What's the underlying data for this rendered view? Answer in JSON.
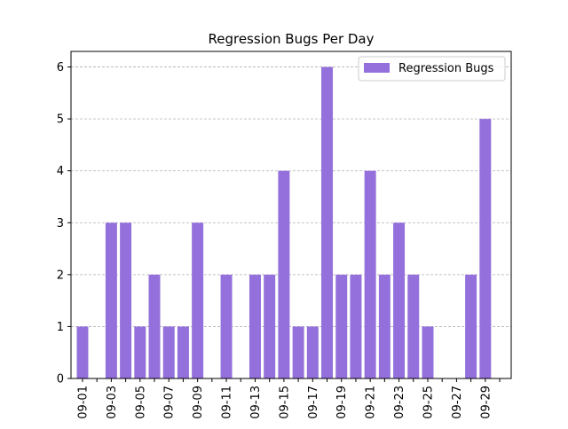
{
  "chart_data": {
    "type": "bar",
    "title": "Regression Bugs Per Day",
    "xlabel": "",
    "ylabel": "",
    "categories": [
      "09-01",
      "09-02",
      "09-03",
      "09-04",
      "09-05",
      "09-06",
      "09-07",
      "09-08",
      "09-09",
      "09-10",
      "09-11",
      "09-12",
      "09-13",
      "09-14",
      "09-15",
      "09-16",
      "09-17",
      "09-18",
      "09-19",
      "09-20",
      "09-21",
      "09-22",
      "09-23",
      "09-24",
      "09-25",
      "09-26",
      "09-27",
      "09-28",
      "09-29",
      "09-30"
    ],
    "x_tick_labels": [
      "09-01",
      "09-03",
      "09-05",
      "09-07",
      "09-09",
      "09-11",
      "09-13",
      "09-15",
      "09-17",
      "09-19",
      "09-21",
      "09-23",
      "09-25",
      "09-27",
      "09-29"
    ],
    "series": [
      {
        "name": "Regression Bugs",
        "color": "#9370DB",
        "values": [
          1,
          0,
          3,
          3,
          1,
          2,
          1,
          1,
          3,
          0,
          2,
          0,
          2,
          2,
          4,
          1,
          1,
          6,
          2,
          2,
          4,
          2,
          3,
          2,
          1,
          0,
          0,
          2,
          5,
          0
        ]
      }
    ],
    "ylim": [
      0,
      6.3
    ],
    "y_ticks": [
      0,
      1,
      2,
      3,
      4,
      5,
      6
    ],
    "grid": {
      "y": true,
      "x": false,
      "style": "dashed",
      "color": "#b0b0b0"
    },
    "legend": {
      "position": "top-right"
    }
  }
}
